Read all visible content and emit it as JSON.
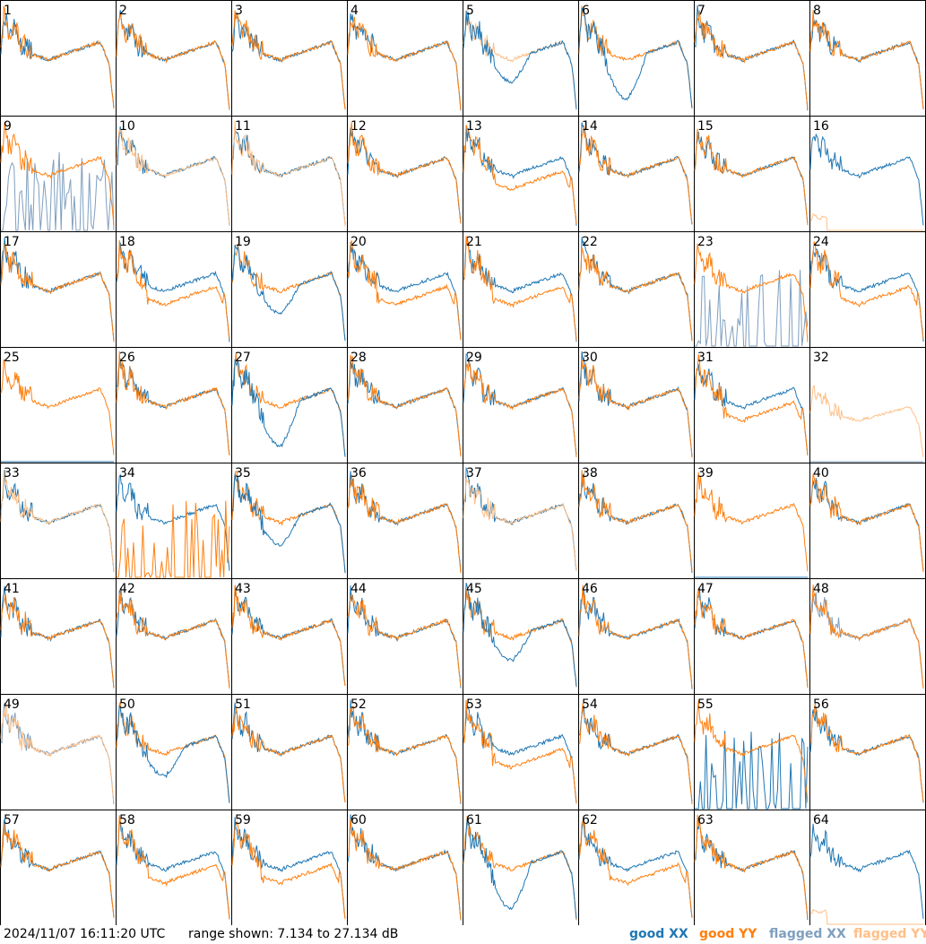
{
  "timestamp": "2024/11/07 16:11:20 UTC",
  "range_text": "range shown: 7.134 to 27.134 dB",
  "colors": {
    "good_xx": "#1f77b4",
    "good_yy": "#ff7f0e",
    "flagged_xx": "#7f9fbf",
    "flagged_yy": "#ffbf87"
  },
  "legend": [
    {
      "text": "good XX",
      "color": "#1f77b4"
    },
    {
      "text": "good YY",
      "color": "#ff7f0e"
    },
    {
      "text": "flagged XX",
      "color": "#7f9fbf"
    },
    {
      "text": "flagged YY",
      "color": "#ffbf87"
    }
  ],
  "chart_data": {
    "type": "line",
    "grid_columns": 8,
    "grid_rows": 8,
    "ylim": [
      7.134,
      27.134
    ],
    "panels": [
      {
        "label": "1",
        "shape": "standard",
        "xx": "good",
        "yy": "good"
      },
      {
        "label": "2",
        "shape": "standard",
        "xx": "good",
        "yy": "good"
      },
      {
        "label": "3",
        "shape": "standard",
        "xx": "good",
        "yy": "good"
      },
      {
        "label": "4",
        "shape": "standard",
        "xx": "good",
        "yy": "good"
      },
      {
        "label": "5",
        "shape": "xx_dip",
        "xx": "good",
        "yy": "flagged"
      },
      {
        "label": "6",
        "shape": "xx_deep",
        "xx": "good",
        "yy": "good"
      },
      {
        "label": "7",
        "shape": "standard",
        "xx": "good",
        "yy": "good"
      },
      {
        "label": "8",
        "shape": "standard",
        "xx": "good",
        "yy": "good"
      },
      {
        "label": "9",
        "shape": "xx_bad",
        "xx": "flagged",
        "yy": "good"
      },
      {
        "label": "10",
        "shape": "both_flagged_yy",
        "xx": "good",
        "yy": "flagged"
      },
      {
        "label": "11",
        "shape": "both_flagged_yy",
        "xx": "good",
        "yy": "flagged"
      },
      {
        "label": "12",
        "shape": "standard",
        "xx": "good",
        "yy": "good"
      },
      {
        "label": "13",
        "shape": "yy_low",
        "xx": "good",
        "yy": "good"
      },
      {
        "label": "14",
        "shape": "standard",
        "xx": "good",
        "yy": "good"
      },
      {
        "label": "15",
        "shape": "standard",
        "xx": "good",
        "yy": "good"
      },
      {
        "label": "16",
        "shape": "xx_only",
        "xx": "good",
        "yy": "flagged"
      },
      {
        "label": "17",
        "shape": "standard",
        "xx": "good",
        "yy": "good"
      },
      {
        "label": "18",
        "shape": "yy_low",
        "xx": "good",
        "yy": "good"
      },
      {
        "label": "19",
        "shape": "xx_dip",
        "xx": "good",
        "yy": "good"
      },
      {
        "label": "20",
        "shape": "yy_low",
        "xx": "good",
        "yy": "good"
      },
      {
        "label": "21",
        "shape": "yy_low",
        "xx": "good",
        "yy": "good"
      },
      {
        "label": "22",
        "shape": "standard",
        "xx": "good",
        "yy": "good"
      },
      {
        "label": "23",
        "shape": "xx_bad",
        "xx": "flagged",
        "yy": "good"
      },
      {
        "label": "24",
        "shape": "yy_low",
        "xx": "good",
        "yy": "good"
      },
      {
        "label": "25",
        "shape": "yy_only",
        "xx": "good",
        "yy": "good"
      },
      {
        "label": "26",
        "shape": "standard",
        "xx": "good",
        "yy": "good"
      },
      {
        "label": "27",
        "shape": "xx_deep",
        "xx": "good",
        "yy": "good"
      },
      {
        "label": "28",
        "shape": "standard",
        "xx": "good",
        "yy": "good"
      },
      {
        "label": "29",
        "shape": "standard",
        "xx": "good",
        "yy": "good"
      },
      {
        "label": "30",
        "shape": "standard",
        "xx": "good",
        "yy": "good"
      },
      {
        "label": "31",
        "shape": "yy_low",
        "xx": "good",
        "yy": "good"
      },
      {
        "label": "32",
        "shape": "yy_flag_only",
        "xx": "flagged",
        "yy": "flagged"
      },
      {
        "label": "33",
        "shape": "standard",
        "xx": "good",
        "yy": "flagged"
      },
      {
        "label": "34",
        "shape": "yy_bad",
        "xx": "good",
        "yy": "good"
      },
      {
        "label": "35",
        "shape": "xx_dip",
        "xx": "good",
        "yy": "good"
      },
      {
        "label": "36",
        "shape": "standard",
        "xx": "good",
        "yy": "good"
      },
      {
        "label": "37",
        "shape": "standard",
        "xx": "good",
        "yy": "flagged"
      },
      {
        "label": "38",
        "shape": "standard",
        "xx": "good",
        "yy": "good"
      },
      {
        "label": "39",
        "shape": "yy_only",
        "xx": "good",
        "yy": "good"
      },
      {
        "label": "40",
        "shape": "standard",
        "xx": "good",
        "yy": "good"
      },
      {
        "label": "41",
        "shape": "standard",
        "xx": "good",
        "yy": "good"
      },
      {
        "label": "42",
        "shape": "standard",
        "xx": "good",
        "yy": "good"
      },
      {
        "label": "43",
        "shape": "standard",
        "xx": "good",
        "yy": "good"
      },
      {
        "label": "44",
        "shape": "standard",
        "xx": "good",
        "yy": "good"
      },
      {
        "label": "45",
        "shape": "xx_dip",
        "xx": "good",
        "yy": "good"
      },
      {
        "label": "46",
        "shape": "standard",
        "xx": "good",
        "yy": "good"
      },
      {
        "label": "47",
        "shape": "standard",
        "xx": "good",
        "yy": "good"
      },
      {
        "label": "48",
        "shape": "standard",
        "xx": "flagged",
        "yy": "good"
      },
      {
        "label": "49",
        "shape": "standard",
        "xx": "flagged",
        "yy": "flagged"
      },
      {
        "label": "50",
        "shape": "xx_dip",
        "xx": "good",
        "yy": "good"
      },
      {
        "label": "51",
        "shape": "standard",
        "xx": "good",
        "yy": "good"
      },
      {
        "label": "52",
        "shape": "standard",
        "xx": "good",
        "yy": "good"
      },
      {
        "label": "53",
        "shape": "yy_low",
        "xx": "good",
        "yy": "good"
      },
      {
        "label": "54",
        "shape": "standard",
        "xx": "good",
        "yy": "good"
      },
      {
        "label": "55",
        "shape": "xx_bad",
        "xx": "good",
        "yy": "good"
      },
      {
        "label": "56",
        "shape": "standard",
        "xx": "good",
        "yy": "good"
      },
      {
        "label": "57",
        "shape": "standard",
        "xx": "good",
        "yy": "good"
      },
      {
        "label": "58",
        "shape": "yy_low",
        "xx": "good",
        "yy": "good"
      },
      {
        "label": "59",
        "shape": "yy_low",
        "xx": "good",
        "yy": "good"
      },
      {
        "label": "60",
        "shape": "standard",
        "xx": "good",
        "yy": "good"
      },
      {
        "label": "61",
        "shape": "xx_deep",
        "xx": "good",
        "yy": "good"
      },
      {
        "label": "62",
        "shape": "yy_low",
        "xx": "good",
        "yy": "good"
      },
      {
        "label": "63",
        "shape": "standard",
        "xx": "good",
        "yy": "good"
      },
      {
        "label": "64",
        "shape": "xx_only",
        "xx": "good",
        "yy": "flagged"
      }
    ]
  }
}
